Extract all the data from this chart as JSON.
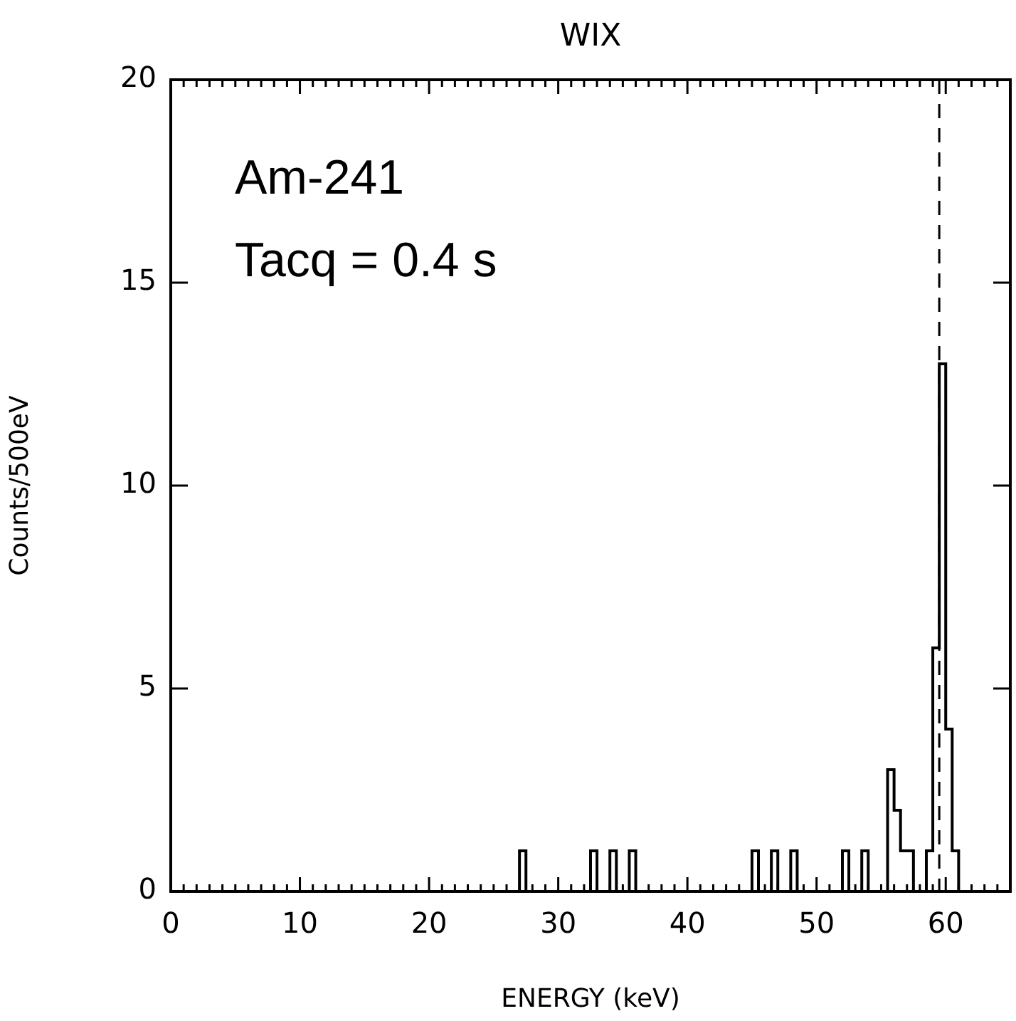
{
  "chart_data": {
    "type": "histogram",
    "title": "WIX",
    "xlabel": "ENERGY (keV)",
    "ylabel": "Counts/500eV",
    "annotations": [
      "Am-241",
      "Tacq = 0.4 s"
    ],
    "bins": [
      26.5,
      27,
      27.5,
      28,
      28.5,
      29,
      29.5,
      30,
      30.5,
      31,
      31.5,
      32,
      32.5,
      33,
      33.5,
      34,
      34.5,
      35,
      35.5,
      36,
      36.5,
      37,
      37.5,
      38,
      38.5,
      39,
      39.5,
      40,
      40.5,
      41,
      41.5,
      42,
      42.5,
      43,
      43.5,
      44,
      44.5,
      45,
      45.5,
      46,
      46.5,
      47,
      47.5,
      48,
      48.5,
      49,
      49.5,
      50,
      50.5,
      51,
      51.5,
      52,
      52.5,
      53,
      53.5,
      54,
      54.5,
      55,
      55.5,
      56,
      56.5,
      57,
      57.5,
      58,
      58.5,
      59,
      59.5,
      60,
      60.5,
      61,
      61.5
    ],
    "values": [
      0,
      1,
      0,
      0,
      0,
      0,
      0,
      0,
      0,
      0,
      0,
      0,
      1,
      0,
      0,
      1,
      0,
      0,
      1,
      0,
      0,
      0,
      0,
      0,
      0,
      0,
      0,
      0,
      0,
      0,
      0,
      0,
      0,
      0,
      0,
      0,
      0,
      1,
      0,
      0,
      1,
      0,
      0,
      1,
      0,
      0,
      0,
      0,
      0,
      0,
      0,
      1,
      0,
      0,
      1,
      0,
      0,
      0,
      3,
      2,
      1,
      1,
      0,
      0,
      1,
      6,
      13,
      4,
      1,
      0
    ],
    "color": "#000000",
    "xlim": [
      0,
      65
    ],
    "xticks": [
      0,
      10,
      20,
      30,
      40,
      50,
      60
    ],
    "ylim": [
      0,
      20
    ],
    "yticks": [
      0,
      5,
      10,
      15,
      20
    ],
    "ref_lines": [
      {
        "axis": "x",
        "value": 59.5,
        "color": "#000000",
        "line_style": "dashed"
      }
    ],
    "grid": false,
    "legend": false
  }
}
